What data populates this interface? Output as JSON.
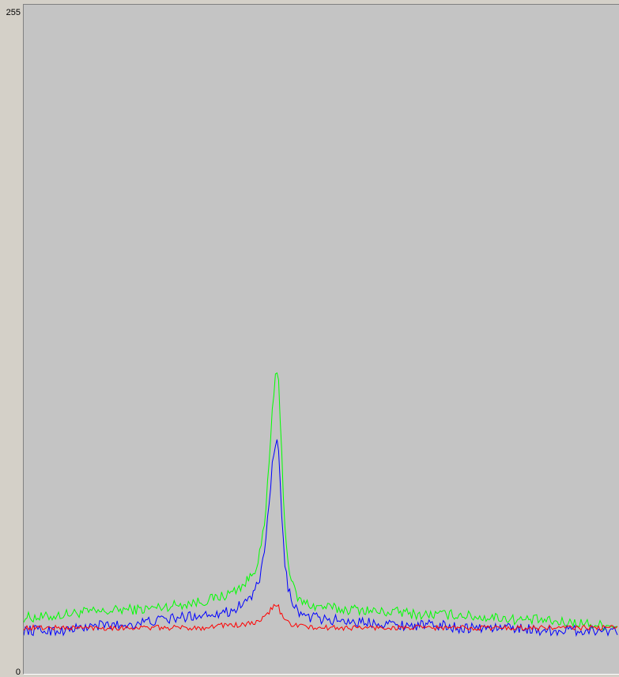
{
  "chart_data": {
    "type": "line",
    "title": "",
    "xlabel": "",
    "ylabel": "",
    "ylim": [
      0,
      255
    ],
    "y_tick_labels": [
      "255",
      "0"
    ],
    "background_color": "#c4c4c4",
    "grid": false,
    "legend": "none",
    "x": [
      0,
      25,
      50,
      75,
      100,
      125,
      150,
      175,
      200,
      225,
      250,
      260,
      270,
      280,
      290,
      295,
      300,
      305,
      310,
      315,
      318,
      320,
      322,
      325,
      330,
      335,
      340,
      345,
      350,
      360,
      370,
      380,
      400,
      425,
      450,
      475,
      500,
      525,
      550,
      575,
      600,
      625,
      650,
      675,
      700,
      725,
      750
    ],
    "series": [
      {
        "color": "#00ff00",
        "values": [
          21,
          21,
          22,
          23,
          23,
          24,
          24,
          25,
          26,
          27,
          29,
          30,
          32,
          34,
          38,
          42,
          48,
          58,
          80,
          105,
          112,
          113,
          110,
          90,
          55,
          40,
          33,
          29,
          27,
          26,
          25,
          25,
          24,
          24,
          23,
          23,
          22,
          22,
          22,
          21,
          21,
          20,
          20,
          19,
          19,
          18,
          18
        ]
      },
      {
        "color": "#0000ff",
        "values": [
          16,
          16,
          16,
          17,
          18,
          18,
          19,
          20,
          21,
          22,
          23,
          23,
          25,
          27,
          30,
          33,
          38,
          47,
          65,
          82,
          86,
          87,
          85,
          65,
          40,
          31,
          27,
          24,
          22,
          21,
          21,
          20,
          20,
          19,
          19,
          18,
          18,
          18,
          17,
          17,
          17,
          17,
          16,
          16,
          16,
          16,
          16
        ]
      },
      {
        "color": "#ff0000",
        "values": [
          17,
          17,
          17,
          17,
          17,
          17,
          17,
          17,
          17,
          17,
          18,
          18,
          18,
          18,
          19,
          19,
          20,
          21,
          23,
          25,
          26,
          26,
          25,
          22,
          20,
          19,
          18,
          18,
          18,
          17,
          17,
          17,
          17,
          17,
          17,
          17,
          17,
          17,
          17,
          17,
          17,
          17,
          17,
          17,
          17,
          17,
          17
        ]
      }
    ]
  }
}
